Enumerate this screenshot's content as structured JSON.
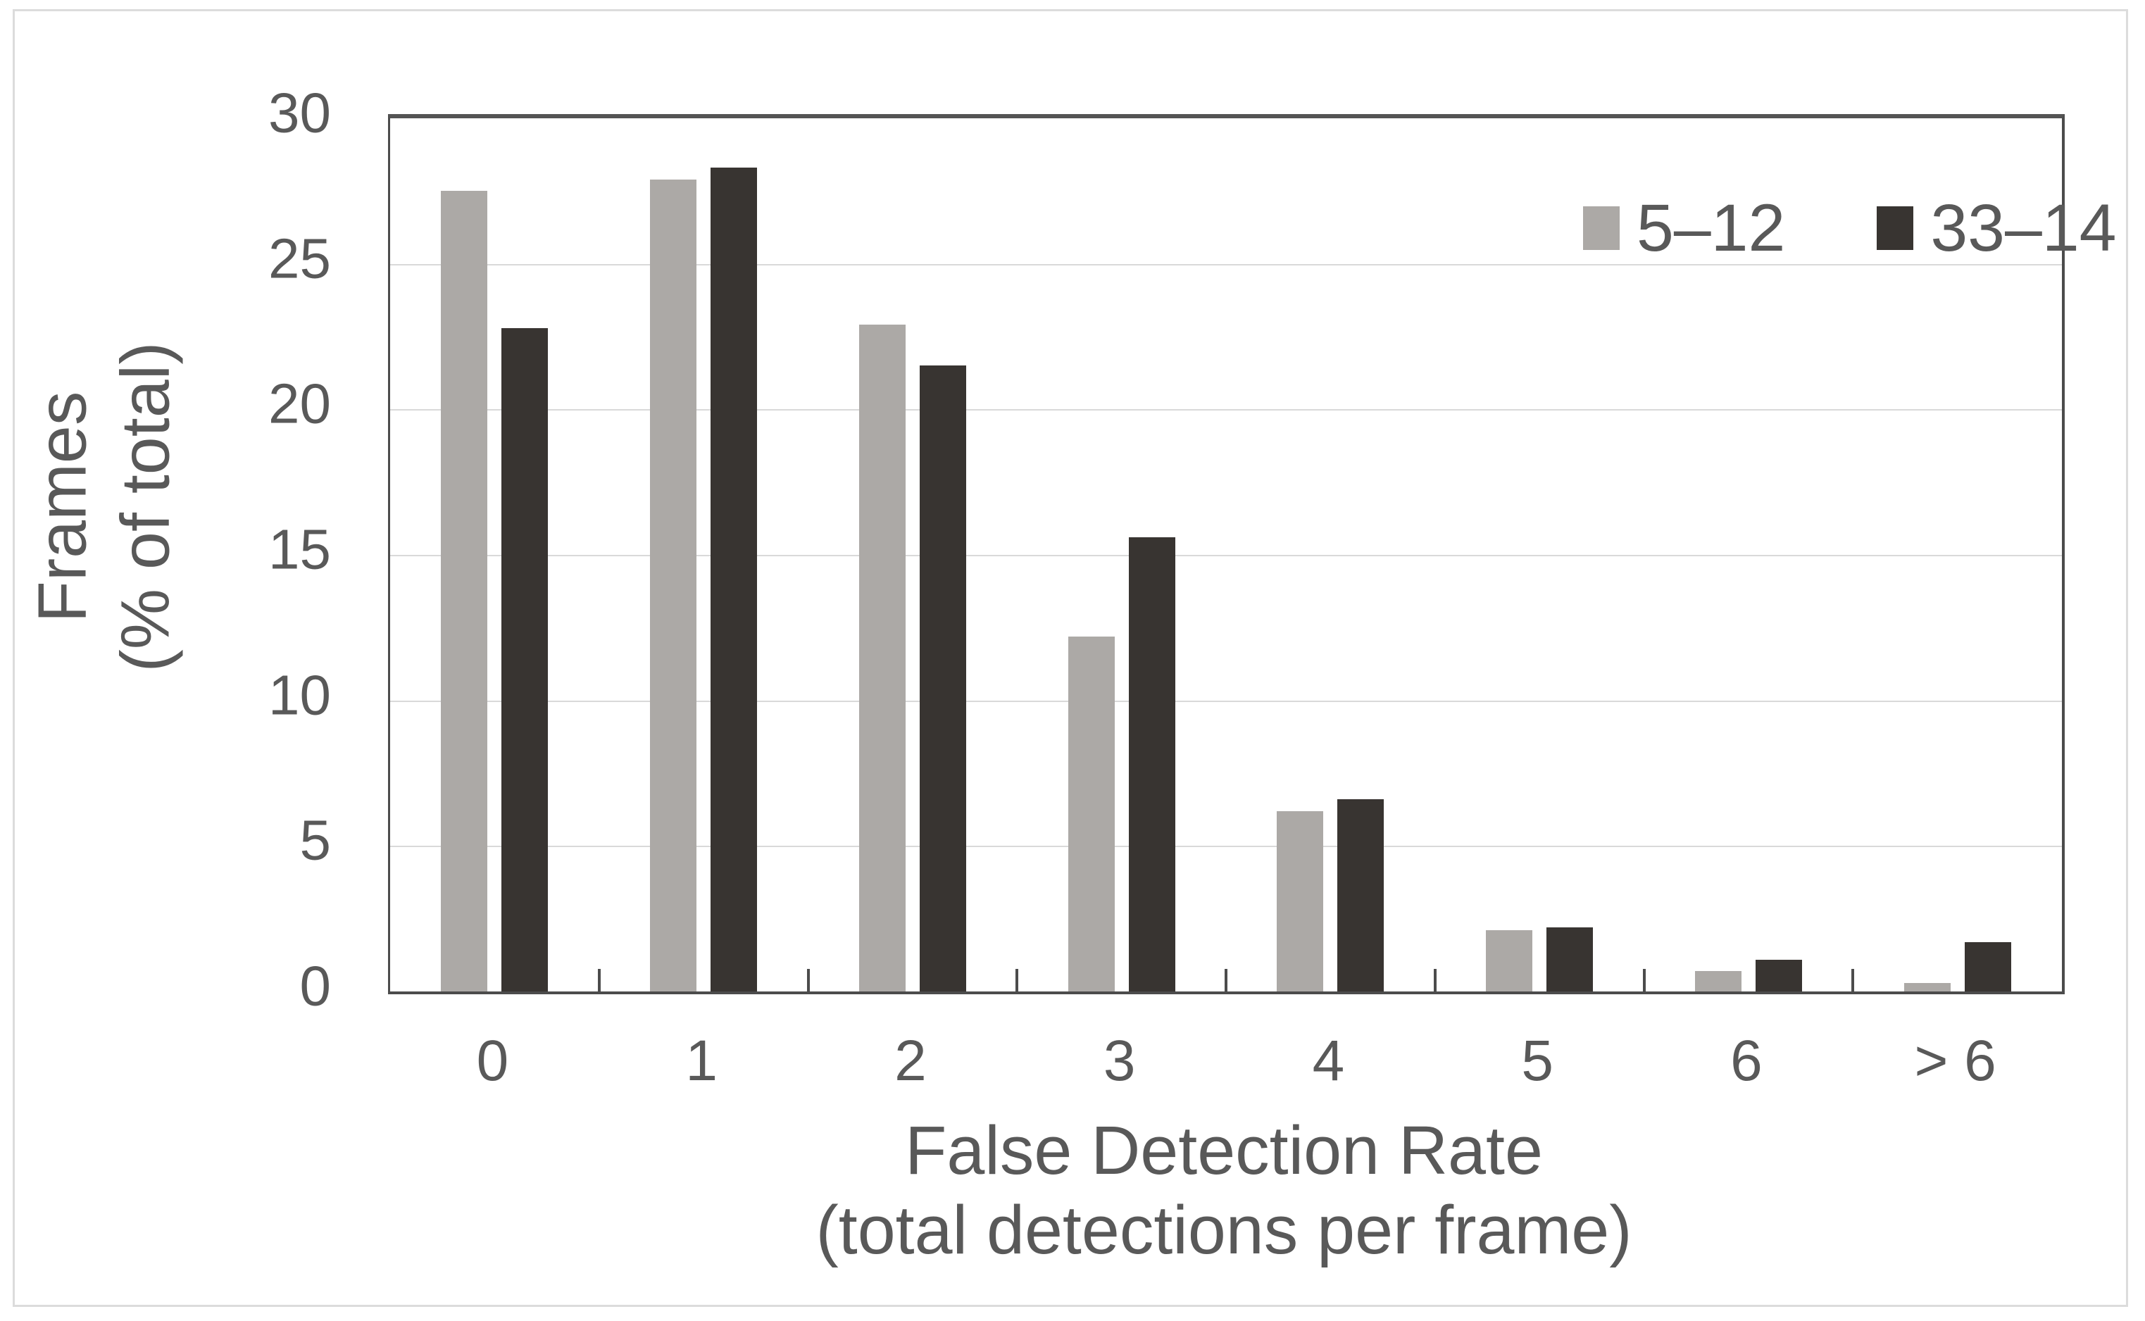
{
  "chart_data": {
    "type": "bar",
    "title": "",
    "categories": [
      "0",
      "1",
      "2",
      "3",
      "4",
      "5",
      "6",
      "> 6"
    ],
    "series": [
      {
        "name": "5–12",
        "color": "#aca9a6",
        "values": [
          27.5,
          27.9,
          22.9,
          12.2,
          6.2,
          2.1,
          0.7,
          0.3
        ]
      },
      {
        "name": "33–14",
        "color": "#383431",
        "values": [
          22.8,
          28.3,
          21.5,
          15.6,
          6.6,
          2.2,
          1.1,
          1.7
        ]
      }
    ],
    "xlabel_line1": "False Detection Rate",
    "xlabel_line2": "(total detections per frame)",
    "ylabel_line1": "Frames",
    "ylabel_line2": "(% of total)",
    "ylim": [
      0,
      30
    ],
    "ytick_values": [
      30,
      25,
      20,
      15,
      10,
      5,
      0
    ],
    "ytick_labels": [
      "30",
      "25",
      "20",
      "15",
      "10",
      "5",
      "0"
    ],
    "grid": true,
    "legend_position": "top-right",
    "colors": {
      "text": "#595959",
      "gridline": "#d9d9d9",
      "axis": "#4c4c4c",
      "outer_frame": "#dcdcdc",
      "plot_background": "#ffffff"
    }
  }
}
